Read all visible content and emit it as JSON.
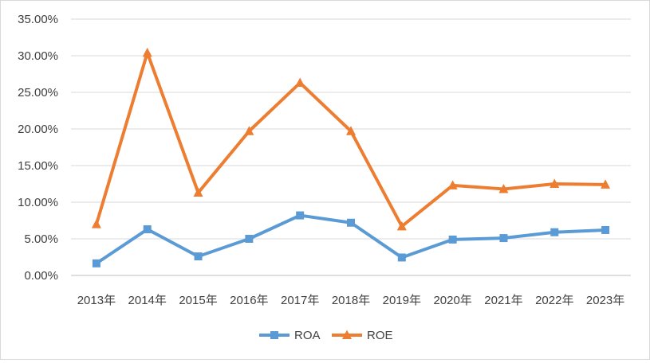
{
  "chart_data": {
    "type": "line",
    "title": "",
    "xlabel": "",
    "ylabel": "",
    "categories": [
      "2013年",
      "2014年",
      "2015年",
      "2016年",
      "2017年",
      "2018年",
      "2019年",
      "2020年",
      "2021年",
      "2022年",
      "2023年"
    ],
    "series": [
      {
        "name": "ROA",
        "color": "#5b9bd5",
        "marker": "square",
        "values": [
          0.0165,
          0.063,
          0.026,
          0.05,
          0.082,
          0.072,
          0.0245,
          0.049,
          0.051,
          0.059,
          0.062
        ]
      },
      {
        "name": "ROE",
        "color": "#ed7d31",
        "marker": "triangle",
        "values": [
          0.07,
          0.304,
          0.113,
          0.197,
          0.263,
          0.197,
          0.067,
          0.123,
          0.118,
          0.125,
          0.124
        ]
      }
    ],
    "ylim": [
      0,
      0.35
    ],
    "yticks": [
      0,
      0.05,
      0.1,
      0.15,
      0.2,
      0.25,
      0.3,
      0.35
    ],
    "ytick_labels": [
      "0.00%",
      "5.00%",
      "10.00%",
      "15.00%",
      "20.00%",
      "25.00%",
      "30.00%",
      "35.00%"
    ],
    "grid": true,
    "legend_position": "bottom"
  }
}
